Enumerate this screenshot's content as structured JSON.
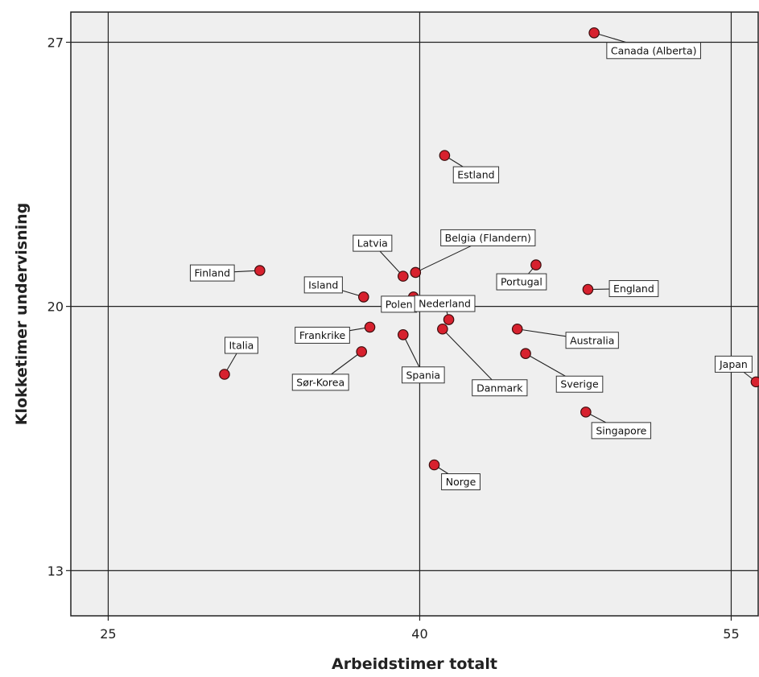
{
  "chart_data": {
    "type": "scatter",
    "xlabel": "Arbeidstimer totalt",
    "ylabel": "Klokketimer undervisning",
    "xlim": [
      23.2,
      56.3
    ],
    "ylim": [
      11.8,
      27.8
    ],
    "xticks": [
      25,
      40,
      55
    ],
    "yticks": [
      13,
      20,
      27
    ],
    "grid": "reference lines at ticks",
    "marker_color": "#d7212e",
    "plot_background": "#efefef",
    "points": [
      {
        "label": "Canada (Alberta)",
        "x": 48.4,
        "y": 27.25
      },
      {
        "label": "Estland",
        "x": 41.2,
        "y": 24.0
      },
      {
        "label": "Belgia (Flandern)",
        "x": 39.8,
        "y": 20.9
      },
      {
        "label": "Latvia",
        "x": 39.2,
        "y": 20.8
      },
      {
        "label": "Finland",
        "x": 32.3,
        "y": 20.95
      },
      {
        "label": "Portugal",
        "x": 45.6,
        "y": 21.1
      },
      {
        "label": "Island",
        "x": 37.3,
        "y": 20.25
      },
      {
        "label": "Polen",
        "x": 39.7,
        "y": 20.25
      },
      {
        "label": "England",
        "x": 48.1,
        "y": 20.45
      },
      {
        "label": "Nederland",
        "x": 41.4,
        "y": 19.65
      },
      {
        "label": "Frankrike",
        "x": 37.6,
        "y": 19.45
      },
      {
        "label": "Danmark",
        "x": 41.1,
        "y": 19.4
      },
      {
        "label": "Australia",
        "x": 44.7,
        "y": 19.4
      },
      {
        "label": "Spania",
        "x": 39.2,
        "y": 19.25
      },
      {
        "label": "Sør-Korea",
        "x": 37.2,
        "y": 18.8
      },
      {
        "label": "Sverige",
        "x": 45.1,
        "y": 18.75
      },
      {
        "label": "Italia",
        "x": 30.6,
        "y": 18.2
      },
      {
        "label": "Japan",
        "x": 56.2,
        "y": 18.0
      },
      {
        "label": "Singapore",
        "x": 48.0,
        "y": 17.2
      },
      {
        "label": "Norge",
        "x": 40.7,
        "y": 15.8
      }
    ]
  }
}
